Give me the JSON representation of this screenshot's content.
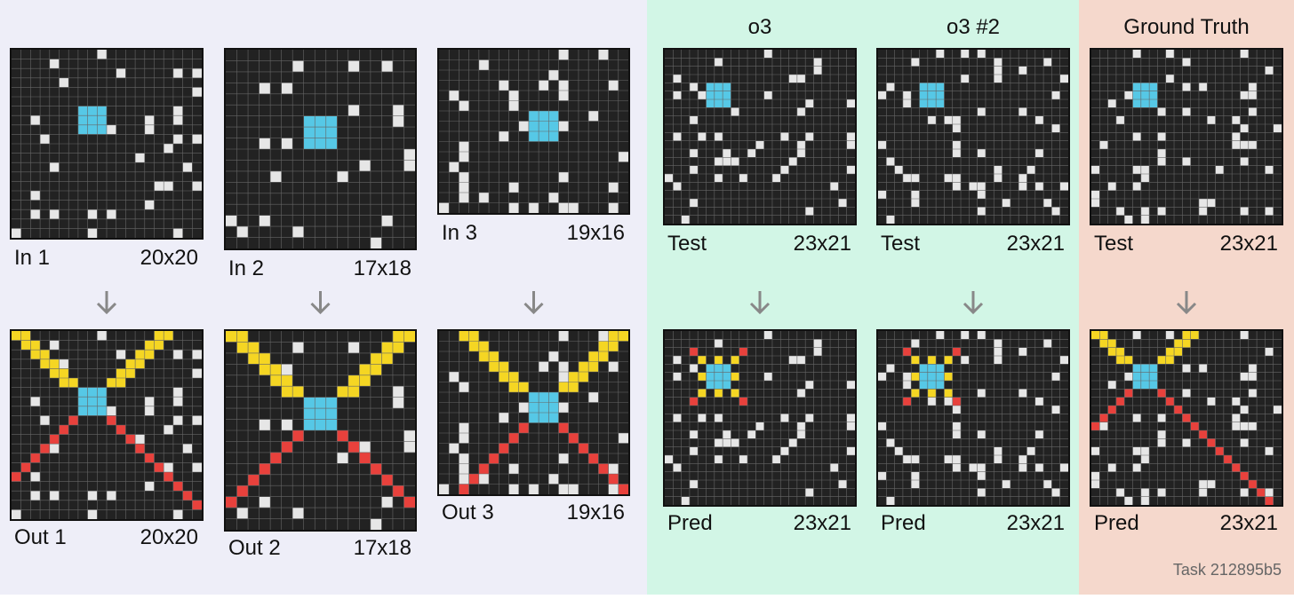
{
  "headers": [
    "o3",
    "o3 #2",
    "Ground Truth"
  ],
  "examples": [
    {
      "input": {
        "label": "In 1",
        "size": "20x20"
      },
      "output": {
        "label": "Out 1",
        "size": "20x20"
      }
    },
    {
      "input": {
        "label": "In 2",
        "size": "17x18"
      },
      "output": {
        "label": "Out 2",
        "size": "17x18"
      }
    },
    {
      "input": {
        "label": "In 3",
        "size": "19x16"
      },
      "output": {
        "label": "Out 3",
        "size": "19x16"
      }
    }
  ],
  "test_columns": [
    {
      "input": {
        "label": "Test",
        "size": "23x21"
      },
      "output": {
        "label": "Pred",
        "size": "23x21"
      }
    },
    {
      "input": {
        "label": "Test",
        "size": "23x21"
      },
      "output": {
        "label": "Pred",
        "size": "23x21"
      }
    },
    {
      "input": {
        "label": "Test",
        "size": "23x21"
      },
      "output": {
        "label": "Pred",
        "size": "23x21"
      }
    }
  ],
  "footer": "Task 212895b5"
}
